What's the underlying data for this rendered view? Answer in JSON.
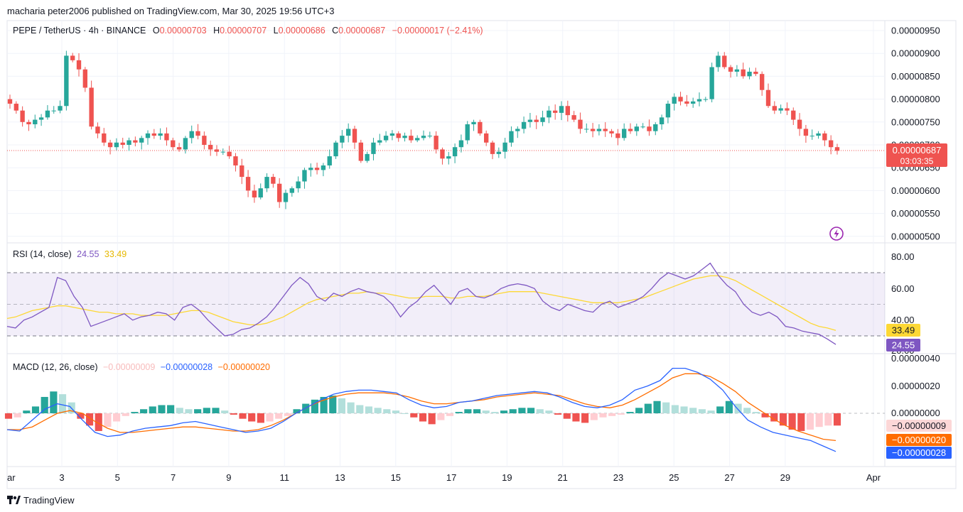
{
  "header": {
    "published_line": "macharia peter2006 published on TradingView.com, Mar 30, 2025 19:56 UTC+3"
  },
  "ohlc": {
    "symbol": "PEPE / TetherUS · 4h · BINANCE",
    "o_label": "O",
    "o_value": "0.00000703",
    "h_label": "H",
    "h_value": "0.00000707",
    "l_label": "L",
    "l_value": "0.00000686",
    "c_label": "C",
    "c_value": "0.00000687",
    "change": "−0.00000017 (−2.41%)"
  },
  "price_axis": {
    "ticks": [
      {
        "value": 9.5e-06,
        "label": "0.00000950"
      },
      {
        "value": 9e-06,
        "label": "0.00000900"
      },
      {
        "value": 8.5e-06,
        "label": "0.00000850"
      },
      {
        "value": 8e-06,
        "label": "0.00000800"
      },
      {
        "value": 7.5e-06,
        "label": "0.00000750"
      },
      {
        "value": 7e-06,
        "label": "0.00000700"
      },
      {
        "value": 6.5e-06,
        "label": "0.00000650"
      },
      {
        "value": 6e-06,
        "label": "0.00000600"
      },
      {
        "value": 5.5e-06,
        "label": "0.00000550"
      },
      {
        "value": 5e-06,
        "label": "0.00000500"
      }
    ],
    "last_price_label": "0.00000687",
    "countdown": "03:03:35"
  },
  "rsi": {
    "label": "RSI (14, close)",
    "value": "24.55",
    "ma_value": "33.49",
    "ticks": [
      "80.00",
      "60.00",
      "40.00",
      "20.00"
    ]
  },
  "macd": {
    "label": "MACD (12, 26, close)",
    "hist_value": "−0.00000009",
    "macd_value": "−0.00000028",
    "signal_value": "−0.00000020",
    "ticks": [
      "0.00000040",
      "0.00000020",
      "0.00000000"
    ]
  },
  "time_axis": {
    "labels": [
      "ar",
      "3",
      "5",
      "7",
      "9",
      "11",
      "13",
      "15",
      "17",
      "19",
      "21",
      "23",
      "25",
      "27",
      "29",
      "Apr"
    ]
  },
  "footer": {
    "brand": "TradingView"
  },
  "colors": {
    "up": "#26a69a",
    "down": "#ef5350",
    "rsi": "#7e57c2",
    "rsi_ma": "#fdd835",
    "macd": "#2962ff",
    "signal": "#ff6d00",
    "hist_up": "#26a69a",
    "hist_down": "#ef5350"
  },
  "chart_data": {
    "type": "candlestick",
    "price_closes": [
      7.9,
      7.75,
      7.5,
      7.45,
      7.55,
      7.6,
      7.75,
      7.75,
      7.85,
      8.95,
      8.85,
      8.65,
      8.25,
      7.4,
      7.25,
      7.05,
      6.95,
      7.05,
      7.0,
      7.1,
      7.05,
      7.15,
      7.25,
      7.2,
      7.25,
      7.1,
      6.95,
      6.9,
      7.15,
      7.3,
      7.2,
      7.0,
      6.9,
      6.85,
      6.85,
      6.75,
      6.55,
      6.3,
      6.0,
      5.85,
      6.05,
      6.3,
      6.15,
      5.75,
      5.95,
      6.05,
      6.2,
      6.45,
      6.5,
      6.45,
      6.55,
      6.75,
      7.05,
      7.2,
      7.35,
      7.05,
      6.65,
      6.8,
      7.05,
      7.1,
      7.2,
      7.25,
      7.15,
      7.2,
      7.1,
      7.15,
      7.2,
      7.2,
      6.9,
      6.7,
      6.75,
      6.95,
      7.1,
      7.45,
      7.5,
      7.25,
      7.05,
      6.8,
      6.85,
      7.05,
      7.3,
      7.35,
      7.5,
      7.55,
      7.5,
      7.6,
      7.75,
      7.7,
      7.85,
      7.65,
      7.55,
      7.35,
      7.35,
      7.3,
      7.35,
      7.3,
      7.25,
      7.15,
      7.35,
      7.3,
      7.4,
      7.4,
      7.3,
      7.45,
      7.6,
      7.9,
      8.05,
      7.95,
      7.9,
      7.95,
      8.0,
      8.0,
      8.7,
      8.95,
      8.7,
      8.6,
      8.65,
      8.5,
      8.6,
      8.55,
      8.2,
      7.85,
      7.75,
      7.8,
      7.75,
      7.55,
      7.35,
      7.2,
      7.2,
      7.25,
      7.1,
      6.95,
      6.87
    ],
    "rsi_series": [
      36,
      35,
      40,
      42,
      45,
      48,
      67,
      65,
      55,
      48,
      36,
      38,
      40,
      42,
      44,
      40,
      42,
      43,
      45,
      44,
      40,
      48,
      50,
      46,
      40,
      35,
      30,
      31,
      34,
      35,
      38,
      42,
      48,
      55,
      62,
      67,
      63,
      55,
      52,
      57,
      55,
      58,
      60,
      58,
      57,
      55,
      50,
      42,
      48,
      52,
      58,
      62,
      56,
      50,
      58,
      60,
      55,
      54,
      56,
      60,
      62,
      63,
      62,
      60,
      52,
      48,
      46,
      50,
      48,
      46,
      45,
      50,
      52,
      48,
      50,
      52,
      55,
      60,
      66,
      70,
      68,
      66,
      68,
      72,
      76,
      68,
      62,
      58,
      50,
      45,
      43,
      45,
      42,
      36,
      35,
      33,
      32,
      31,
      28,
      24.55
    ],
    "rsi_ma_series": [
      41,
      42,
      44,
      46,
      47,
      48,
      49,
      49,
      48,
      47,
      46,
      45,
      45,
      44,
      44,
      44,
      43,
      43,
      43,
      43,
      44,
      45,
      46,
      46,
      45,
      43,
      41,
      39,
      38,
      37,
      37,
      38,
      40,
      42,
      45,
      48,
      51,
      53,
      54,
      55,
      56,
      57,
      57,
      58,
      57,
      57,
      56,
      55,
      54,
      54,
      55,
      55,
      55,
      54,
      54,
      55,
      55,
      55,
      56,
      57,
      58,
      58,
      58,
      58,
      57,
      56,
      55,
      54,
      53,
      52,
      51,
      51,
      51,
      51,
      52,
      53,
      54,
      56,
      58,
      60,
      62,
      64,
      66,
      67,
      68,
      68,
      67,
      65,
      62,
      59,
      56,
      53,
      50,
      47,
      44,
      41,
      38,
      36,
      35,
      33.49
    ],
    "macd_hist_series": [
      -0.4,
      -0.3,
      0.2,
      0.5,
      1.2,
      1.6,
      1.4,
      0.8,
      -0.4,
      -0.9,
      -1.3,
      -1.0,
      -0.6,
      -0.2,
      0.1,
      0.3,
      0.5,
      0.6,
      0.6,
      0.4,
      0.3,
      0.3,
      0.4,
      0.4,
      0.2,
      -0.1,
      -0.4,
      -0.6,
      -0.7,
      -0.6,
      -0.4,
      -0.2,
      0.3,
      0.7,
      1.0,
      1.2,
      1.3,
      1.1,
      0.8,
      0.6,
      0.5,
      0.4,
      0.3,
      0.2,
      0.0,
      -0.3,
      -0.6,
      -0.8,
      -0.5,
      -0.2,
      0.1,
      0.3,
      0.3,
      0.2,
      0.1,
      0.2,
      0.3,
      0.4,
      0.4,
      0.3,
      0.2,
      -0.1,
      -0.4,
      -0.6,
      -0.7,
      -0.5,
      -0.3,
      -0.2,
      -0.1,
      0.1,
      0.4,
      0.7,
      0.9,
      0.8,
      0.6,
      0.5,
      0.4,
      0.3,
      0.2,
      0.5,
      0.9,
      0.7,
      0.4,
      0.1,
      -0.3,
      -0.6,
      -0.9,
      -1.2,
      -1.3,
      -1.2,
      -1.0,
      -0.9,
      -0.9
    ],
    "macd_series": [
      -1.2,
      -1.3,
      -0.5,
      0.3,
      0.7,
      0.5,
      -0.5,
      -1.4,
      -1.7,
      -1.6,
      -1.3,
      -1.1,
      -1.0,
      -0.9,
      -0.7,
      -0.6,
      -0.8,
      -1.0,
      -1.2,
      -1.4,
      -1.3,
      -1.1,
      -0.6,
      0.0,
      0.5,
      1.0,
      1.4,
      1.6,
      1.7,
      1.7,
      1.6,
      1.5,
      1.0,
      0.6,
      0.4,
      0.5,
      0.8,
      0.9,
      1.1,
      1.3,
      1.4,
      1.5,
      1.6,
      1.5,
      1.2,
      0.8,
      0.5,
      0.4,
      0.6,
      1.0,
      1.7,
      2.0,
      2.4,
      3.3,
      3.3,
      3.0,
      2.5,
      1.7,
      0.5,
      -0.5,
      -1.0,
      -1.4,
      -1.6,
      -1.8,
      -2.0,
      -2.4,
      -2.8
    ],
    "signal_series": [
      -1.2,
      -1.2,
      -1.0,
      -0.5,
      0.0,
      0.2,
      0.0,
      -0.6,
      -1.1,
      -1.4,
      -1.4,
      -1.3,
      -1.2,
      -1.1,
      -1.0,
      -1.0,
      -1.1,
      -1.2,
      -1.3,
      -1.3,
      -1.2,
      -0.9,
      -0.5,
      0.0,
      0.5,
      0.9,
      1.2,
      1.4,
      1.5,
      1.5,
      1.5,
      1.4,
      1.2,
      0.9,
      0.7,
      0.7,
      0.8,
      0.9,
      1.0,
      1.2,
      1.3,
      1.4,
      1.5,
      1.4,
      1.3,
      1.0,
      0.7,
      0.5,
      0.4,
      0.6,
      1.0,
      1.5,
      2.0,
      2.6,
      2.9,
      2.9,
      2.7,
      2.2,
      1.6,
      0.8,
      0.2,
      -0.4,
      -0.9,
      -1.3,
      -1.6,
      -1.9,
      -2.0
    ]
  }
}
